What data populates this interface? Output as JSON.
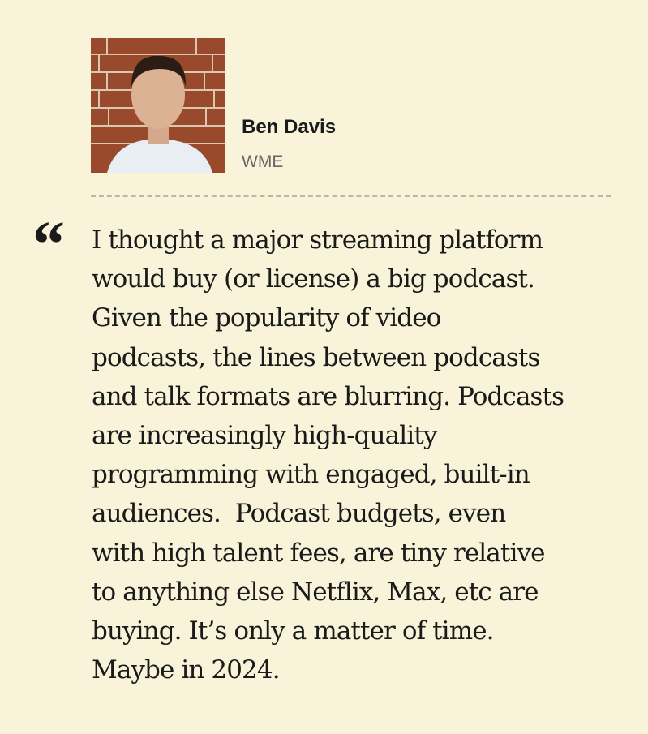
{
  "author": {
    "name": "Ben Davis",
    "organization": "WME"
  },
  "quote": {
    "mark": "“",
    "lines": [
      "I thought a major streaming platform",
      "would buy (or license) a big podcast.",
      "Given the popularity of video",
      "podcasts, the lines between podcasts",
      "and talk formats are blurring. Podcasts",
      "are increasingly high-quality",
      "programming with engaged, built-in",
      "audiences.  Podcast budgets, even",
      "with high talent fees, are tiny relative",
      "to anything else Netflix, Max, etc are",
      "buying. It’s only a matter of time.",
      "Maybe in 2024."
    ]
  }
}
